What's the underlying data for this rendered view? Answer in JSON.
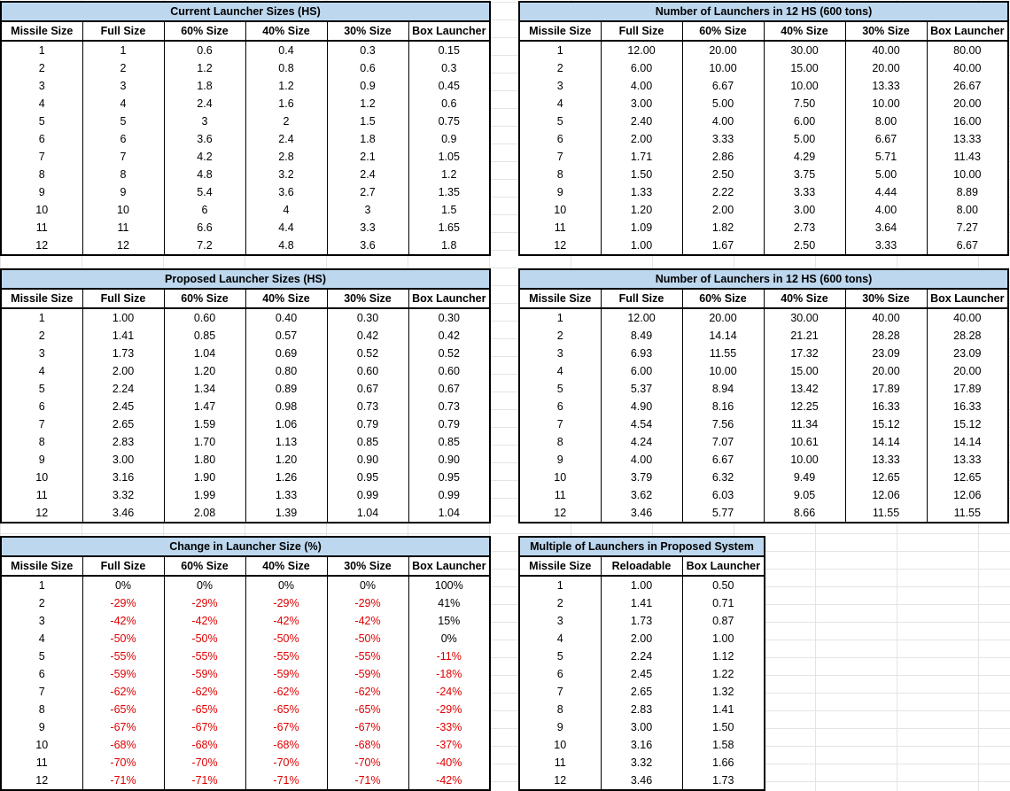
{
  "colors": {
    "header_fill": "#bdd7ee",
    "negative_text": "#e00000"
  },
  "tables": [
    {
      "id": "current-sizes",
      "title": "Current Launcher Sizes (HS)",
      "headers": [
        "Missile Size",
        "Full Size",
        "60% Size",
        "40% Size",
        "30% Size",
        "Box Launcher"
      ],
      "rows": [
        [
          "1",
          "1",
          "0.6",
          "0.4",
          "0.3",
          "0.15"
        ],
        [
          "2",
          "2",
          "1.2",
          "0.8",
          "0.6",
          "0.3"
        ],
        [
          "3",
          "3",
          "1.8",
          "1.2",
          "0.9",
          "0.45"
        ],
        [
          "4",
          "4",
          "2.4",
          "1.6",
          "1.2",
          "0.6"
        ],
        [
          "5",
          "5",
          "3",
          "2",
          "1.5",
          "0.75"
        ],
        [
          "6",
          "6",
          "3.6",
          "2.4",
          "1.8",
          "0.9"
        ],
        [
          "7",
          "7",
          "4.2",
          "2.8",
          "2.1",
          "1.05"
        ],
        [
          "8",
          "8",
          "4.8",
          "3.2",
          "2.4",
          "1.2"
        ],
        [
          "9",
          "9",
          "5.4",
          "3.6",
          "2.7",
          "1.35"
        ],
        [
          "10",
          "10",
          "6",
          "4",
          "3",
          "1.5"
        ],
        [
          "11",
          "11",
          "6.6",
          "4.4",
          "3.3",
          "1.65"
        ],
        [
          "12",
          "12",
          "7.2",
          "4.8",
          "3.6",
          "1.8"
        ]
      ]
    },
    {
      "id": "current-count",
      "title": "Number of Launchers in 12 HS (600 tons)",
      "headers": [
        "Missile Size",
        "Full Size",
        "60% Size",
        "40% Size",
        "30% Size",
        "Box Launcher"
      ],
      "rows": [
        [
          "1",
          "12.00",
          "20.00",
          "30.00",
          "40.00",
          "80.00"
        ],
        [
          "2",
          "6.00",
          "10.00",
          "15.00",
          "20.00",
          "40.00"
        ],
        [
          "3",
          "4.00",
          "6.67",
          "10.00",
          "13.33",
          "26.67"
        ],
        [
          "4",
          "3.00",
          "5.00",
          "7.50",
          "10.00",
          "20.00"
        ],
        [
          "5",
          "2.40",
          "4.00",
          "6.00",
          "8.00",
          "16.00"
        ],
        [
          "6",
          "2.00",
          "3.33",
          "5.00",
          "6.67",
          "13.33"
        ],
        [
          "7",
          "1.71",
          "2.86",
          "4.29",
          "5.71",
          "11.43"
        ],
        [
          "8",
          "1.50",
          "2.50",
          "3.75",
          "5.00",
          "10.00"
        ],
        [
          "9",
          "1.33",
          "2.22",
          "3.33",
          "4.44",
          "8.89"
        ],
        [
          "10",
          "1.20",
          "2.00",
          "3.00",
          "4.00",
          "8.00"
        ],
        [
          "11",
          "1.09",
          "1.82",
          "2.73",
          "3.64",
          "7.27"
        ],
        [
          "12",
          "1.00",
          "1.67",
          "2.50",
          "3.33",
          "6.67"
        ]
      ]
    },
    {
      "id": "proposed-sizes",
      "title": "Proposed Launcher Sizes (HS)",
      "headers": [
        "Missile Size",
        "Full Size",
        "60% Size",
        "40% Size",
        "30% Size",
        "Box Launcher"
      ],
      "rows": [
        [
          "1",
          "1.00",
          "0.60",
          "0.40",
          "0.30",
          "0.30"
        ],
        [
          "2",
          "1.41",
          "0.85",
          "0.57",
          "0.42",
          "0.42"
        ],
        [
          "3",
          "1.73",
          "1.04",
          "0.69",
          "0.52",
          "0.52"
        ],
        [
          "4",
          "2.00",
          "1.20",
          "0.80",
          "0.60",
          "0.60"
        ],
        [
          "5",
          "2.24",
          "1.34",
          "0.89",
          "0.67",
          "0.67"
        ],
        [
          "6",
          "2.45",
          "1.47",
          "0.98",
          "0.73",
          "0.73"
        ],
        [
          "7",
          "2.65",
          "1.59",
          "1.06",
          "0.79",
          "0.79"
        ],
        [
          "8",
          "2.83",
          "1.70",
          "1.13",
          "0.85",
          "0.85"
        ],
        [
          "9",
          "3.00",
          "1.80",
          "1.20",
          "0.90",
          "0.90"
        ],
        [
          "10",
          "3.16",
          "1.90",
          "1.26",
          "0.95",
          "0.95"
        ],
        [
          "11",
          "3.32",
          "1.99",
          "1.33",
          "0.99",
          "0.99"
        ],
        [
          "12",
          "3.46",
          "2.08",
          "1.39",
          "1.04",
          "1.04"
        ]
      ]
    },
    {
      "id": "proposed-count",
      "title": "Number of Launchers in 12 HS (600 tons)",
      "headers": [
        "Missile Size",
        "Full Size",
        "60% Size",
        "40% Size",
        "30% Size",
        "Box Launcher"
      ],
      "rows": [
        [
          "1",
          "12.00",
          "20.00",
          "30.00",
          "40.00",
          "40.00"
        ],
        [
          "2",
          "8.49",
          "14.14",
          "21.21",
          "28.28",
          "28.28"
        ],
        [
          "3",
          "6.93",
          "11.55",
          "17.32",
          "23.09",
          "23.09"
        ],
        [
          "4",
          "6.00",
          "10.00",
          "15.00",
          "20.00",
          "20.00"
        ],
        [
          "5",
          "5.37",
          "8.94",
          "13.42",
          "17.89",
          "17.89"
        ],
        [
          "6",
          "4.90",
          "8.16",
          "12.25",
          "16.33",
          "16.33"
        ],
        [
          "7",
          "4.54",
          "7.56",
          "11.34",
          "15.12",
          "15.12"
        ],
        [
          "8",
          "4.24",
          "7.07",
          "10.61",
          "14.14",
          "14.14"
        ],
        [
          "9",
          "4.00",
          "6.67",
          "10.00",
          "13.33",
          "13.33"
        ],
        [
          "10",
          "3.79",
          "6.32",
          "9.49",
          "12.65",
          "12.65"
        ],
        [
          "11",
          "3.62",
          "6.03",
          "9.05",
          "12.06",
          "12.06"
        ],
        [
          "12",
          "3.46",
          "5.77",
          "8.66",
          "11.55",
          "11.55"
        ]
      ]
    },
    {
      "id": "change-pct",
      "title": "Change in Launcher Size (%)",
      "headers": [
        "Missile Size",
        "Full Size",
        "60% Size",
        "40% Size",
        "30% Size",
        "Box Launcher"
      ],
      "rows": [
        [
          "1",
          "0%",
          "0%",
          "0%",
          "0%",
          "100%"
        ],
        [
          "2",
          "-29%",
          "-29%",
          "-29%",
          "-29%",
          "41%"
        ],
        [
          "3",
          "-42%",
          "-42%",
          "-42%",
          "-42%",
          "15%"
        ],
        [
          "4",
          "-50%",
          "-50%",
          "-50%",
          "-50%",
          "0%"
        ],
        [
          "5",
          "-55%",
          "-55%",
          "-55%",
          "-55%",
          "-11%"
        ],
        [
          "6",
          "-59%",
          "-59%",
          "-59%",
          "-59%",
          "-18%"
        ],
        [
          "7",
          "-62%",
          "-62%",
          "-62%",
          "-62%",
          "-24%"
        ],
        [
          "8",
          "-65%",
          "-65%",
          "-65%",
          "-65%",
          "-29%"
        ],
        [
          "9",
          "-67%",
          "-67%",
          "-67%",
          "-67%",
          "-33%"
        ],
        [
          "10",
          "-68%",
          "-68%",
          "-68%",
          "-68%",
          "-37%"
        ],
        [
          "11",
          "-70%",
          "-70%",
          "-70%",
          "-70%",
          "-40%"
        ],
        [
          "12",
          "-71%",
          "-71%",
          "-71%",
          "-71%",
          "-42%"
        ]
      ]
    },
    {
      "id": "multiple",
      "title": "Multiple of Launchers in Proposed System",
      "headers": [
        "Missile Size",
        "Reloadable",
        "Box Launcher"
      ],
      "rows": [
        [
          "1",
          "1.00",
          "0.50"
        ],
        [
          "2",
          "1.41",
          "0.71"
        ],
        [
          "3",
          "1.73",
          "0.87"
        ],
        [
          "4",
          "2.00",
          "1.00"
        ],
        [
          "5",
          "2.24",
          "1.12"
        ],
        [
          "6",
          "2.45",
          "1.22"
        ],
        [
          "7",
          "2.65",
          "1.32"
        ],
        [
          "8",
          "2.83",
          "1.41"
        ],
        [
          "9",
          "3.00",
          "1.50"
        ],
        [
          "10",
          "3.16",
          "1.58"
        ],
        [
          "11",
          "3.32",
          "1.66"
        ],
        [
          "12",
          "3.46",
          "1.73"
        ]
      ]
    }
  ]
}
